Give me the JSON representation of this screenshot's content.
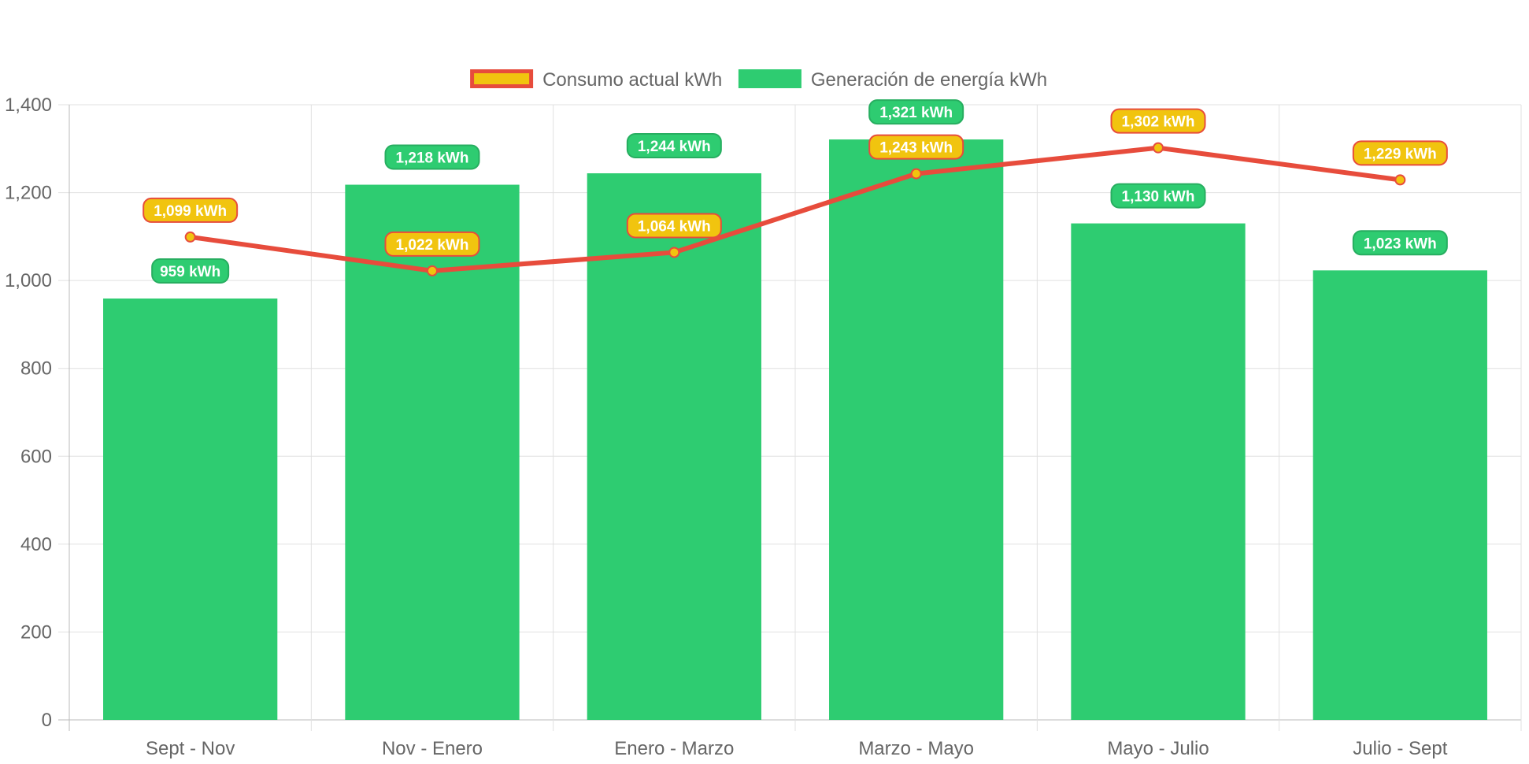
{
  "chart_data": {
    "type": "bar",
    "categories": [
      "Sept - Nov",
      "Nov - Enero",
      "Enero - Marzo",
      "Marzo - Mayo",
      "Mayo - Julio",
      "Julio - Sept"
    ],
    "series": [
      {
        "name": "Generación de energía kWh",
        "kind": "bar",
        "color": "#2ecc71",
        "values": [
          959,
          1218,
          1244,
          1321,
          1130,
          1023
        ],
        "labels": [
          "959 kWh",
          "1,218 kWh",
          "1,244 kWh",
          "1,321 kWh",
          "1,130 kWh",
          "1,023 kWh"
        ]
      },
      {
        "name": "Consumo actual kWh",
        "kind": "line",
        "color": "#e74c3c",
        "point_color": "#f1c40f",
        "values": [
          1099,
          1022,
          1064,
          1243,
          1302,
          1229
        ],
        "labels": [
          "1,099 kWh",
          "1,022 kWh",
          "1,064 kWh",
          "1,243 kWh",
          "1,302 kWh",
          "1,229 kWh"
        ]
      }
    ],
    "ylim": [
      0,
      1400
    ],
    "yticks": [
      "0",
      "200",
      "400",
      "600",
      "800",
      "1,000",
      "1,200",
      "1,400"
    ],
    "grid": true,
    "legend_position": "top-center",
    "legend": [
      {
        "label": "Consumo actual kWh",
        "fill": "#f1c40f",
        "stroke": "#e74c3c"
      },
      {
        "label": "Generación de energía kWh",
        "fill": "#2ecc71",
        "stroke": "#2ecc71"
      }
    ]
  }
}
